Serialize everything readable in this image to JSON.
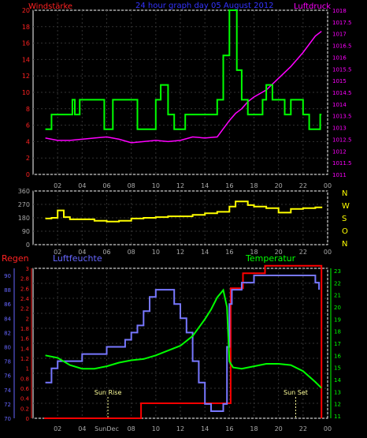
{
  "chart_data": [
    {
      "type": "line",
      "title": "24 hour graph day  05 August 2012",
      "left_axis_label": "Windstärke",
      "right_axis_label": "Luftdruck",
      "x_ticks": [
        "02",
        "04",
        "06",
        "08",
        "10",
        "12",
        "14",
        "16",
        "18",
        "20",
        "22",
        "00"
      ],
      "y_left_ticks": [
        "0",
        "2",
        "4",
        "6",
        "8",
        "10",
        "12",
        "14",
        "16",
        "18",
        "20"
      ],
      "y_left_range": [
        0,
        20
      ],
      "y_right_ticks": [
        "1011",
        "1011.5",
        "1012",
        "1012.5",
        "1013",
        "1013.5",
        "1014",
        "1014.5",
        "1015",
        "1015.5",
        "1016",
        "1016.5",
        "1017",
        "1017.5",
        "1018"
      ],
      "y_right_range": [
        1011,
        1018
      ],
      "colors": {
        "wind": "#00ff00",
        "pressure": "#ff00ff",
        "title": "#3333ff",
        "left_label": "#ff2222",
        "right_label": "#ff00ff"
      },
      "series": [
        {
          "name": "wind",
          "axis": "left",
          "x": [
            1,
            1.5,
            2.5,
            3.2,
            3.4,
            3.8,
            4.5,
            5.8,
            6.5,
            7.5,
            8.5,
            9.2,
            10,
            10.4,
            11,
            11.5,
            12,
            12.4,
            13,
            14,
            15,
            15.5,
            16,
            16.6,
            17,
            17.5,
            18.2,
            18.7,
            19,
            19.5,
            20,
            20.5,
            21,
            22,
            22.5,
            23,
            23.4,
            23.5
          ],
          "y": [
            5.5,
            7.3,
            7.3,
            9.1,
            7.3,
            9.1,
            9.1,
            5.5,
            9.1,
            9.1,
            5.5,
            5.5,
            9.1,
            10.9,
            7.3,
            5.5,
            5.5,
            7.3,
            7.3,
            7.3,
            9.1,
            14.5,
            20,
            12.7,
            9.1,
            7.3,
            7.3,
            9.1,
            10.9,
            9.1,
            9.1,
            7.3,
            9.1,
            7.3,
            5.5,
            5.5,
            7.3,
            7.3
          ]
        },
        {
          "name": "pressure",
          "axis": "right",
          "x": [
            1,
            2,
            3,
            4,
            5,
            6,
            7,
            8,
            9,
            10,
            11,
            12,
            13,
            14,
            15,
            16,
            16.5,
            17,
            17.5,
            18,
            19,
            20,
            21,
            22,
            23,
            23.5
          ],
          "y": [
            1012.55,
            1012.45,
            1012.45,
            1012.5,
            1012.55,
            1012.6,
            1012.5,
            1012.35,
            1012.4,
            1012.45,
            1012.4,
            1012.45,
            1012.6,
            1012.55,
            1012.6,
            1013.3,
            1013.6,
            1013.8,
            1014.1,
            1014.3,
            1014.6,
            1015.1,
            1015.6,
            1016.2,
            1016.9,
            1017.1
          ]
        }
      ]
    },
    {
      "type": "line",
      "x_ticks": [
        "02",
        "04",
        "06",
        "08",
        "10",
        "12",
        "14",
        "16",
        "18",
        "20",
        "22",
        "00"
      ],
      "y_ticks": [
        "0",
        "90",
        "180",
        "270",
        "360"
      ],
      "y_range": [
        0,
        360
      ],
      "right_labels": [
        "N",
        "W",
        "S",
        "O",
        "N"
      ],
      "colors": {
        "line": "#ffff00",
        "right_labels": "#ffff00"
      },
      "series": [
        {
          "name": "direction",
          "x": [
            1,
            1.5,
            2,
            2.5,
            3,
            4,
            5,
            6,
            7,
            8,
            9,
            10,
            11,
            12,
            13,
            14,
            15,
            16,
            16.5,
            17,
            17.5,
            18,
            19,
            20,
            21,
            22,
            23,
            23.5
          ],
          "y": [
            175,
            180,
            230,
            185,
            170,
            170,
            160,
            155,
            160,
            175,
            180,
            185,
            190,
            190,
            200,
            210,
            220,
            255,
            290,
            290,
            265,
            255,
            245,
            215,
            240,
            245,
            250,
            255
          ]
        }
      ]
    },
    {
      "type": "line",
      "left_axis_label": "Regen",
      "humidity_label": "Luftfeuchte",
      "temperature_label": "Temperatur",
      "x_ticks": [
        "02",
        "04",
        "SunDec",
        "08",
        "10",
        "12",
        "14",
        "16",
        "18",
        "20",
        "22",
        "00"
      ],
      "y_rain_ticks": [
        "0",
        "0.2",
        "0.4",
        "0.6",
        "0.8",
        "1",
        "1.2",
        "1.4",
        "1.6",
        "1.8",
        "2",
        "2.2",
        "2.4",
        "2.6",
        "2.8",
        "3"
      ],
      "y_rain_range": [
        0,
        3
      ],
      "y_humidity_ticks": [
        "70",
        "72",
        "74",
        "76",
        "78",
        "80",
        "82",
        "84",
        "86",
        "88",
        "90"
      ],
      "y_humidity_range": [
        70,
        91
      ],
      "y_temp_ticks": [
        "11",
        "12",
        "13",
        "14",
        "15",
        "16",
        "17",
        "18",
        "19",
        "20",
        "21",
        "22",
        "23"
      ],
      "y_temp_range": [
        10.8,
        23.2
      ],
      "annotations": [
        {
          "text": "Sun Rise",
          "x": 6.1
        },
        {
          "text": "Sun Set",
          "x": 21.4
        }
      ],
      "colors": {
        "rain": "#ff0000",
        "humidity": "#6666ff",
        "temperature": "#00ff00",
        "regen_label": "#ff2222",
        "humidity_label": "#6666ff",
        "temperature_label": "#00ff00",
        "annotation": "#ffff99"
      },
      "series": [
        {
          "name": "rain",
          "axis": "rain",
          "x": [
            0.9,
            8.8,
            8.8,
            16.1,
            16.1,
            17.1,
            17.1,
            18.9,
            18.9,
            23.5,
            23.5
          ],
          "y": [
            0,
            0,
            0.3,
            0.3,
            2.6,
            2.6,
            2.9,
            2.9,
            3.05,
            3.05,
            0
          ]
        },
        {
          "name": "humidity",
          "axis": "humidity",
          "x": [
            1,
            1.5,
            2,
            3,
            4,
            5,
            6,
            7,
            7.5,
            8,
            8.5,
            9,
            9.5,
            10,
            10.5,
            11,
            11.5,
            12,
            12.5,
            13,
            13.5,
            14,
            14.5,
            15,
            15.5,
            15.8,
            16,
            16.2,
            17,
            18,
            19,
            20,
            21,
            22,
            23,
            23.3
          ],
          "y": [
            75,
            77,
            78,
            78,
            79,
            79,
            80,
            80,
            81,
            82,
            83,
            85,
            87,
            88,
            88,
            88,
            86,
            84,
            82,
            78,
            75,
            72,
            71,
            71,
            72,
            80,
            86,
            88,
            89,
            90,
            90,
            90,
            90,
            90,
            89,
            88
          ]
        },
        {
          "name": "temperature",
          "axis": "temp",
          "x": [
            1,
            2,
            3,
            4,
            5,
            6,
            7,
            8,
            9,
            10,
            11,
            12,
            13,
            14,
            14.5,
            15,
            15.5,
            15.8,
            16,
            16.3,
            17,
            18,
            19,
            20,
            21,
            22,
            23,
            23.5
          ],
          "y": [
            16,
            15.8,
            15.2,
            14.9,
            14.9,
            15.1,
            15.4,
            15.6,
            15.7,
            16,
            16.4,
            16.8,
            17.6,
            19,
            19.8,
            20.8,
            21.4,
            20,
            15.5,
            15,
            14.9,
            15.1,
            15.3,
            15.3,
            15.2,
            14.7,
            13.8,
            13.3
          ]
        }
      ]
    }
  ]
}
